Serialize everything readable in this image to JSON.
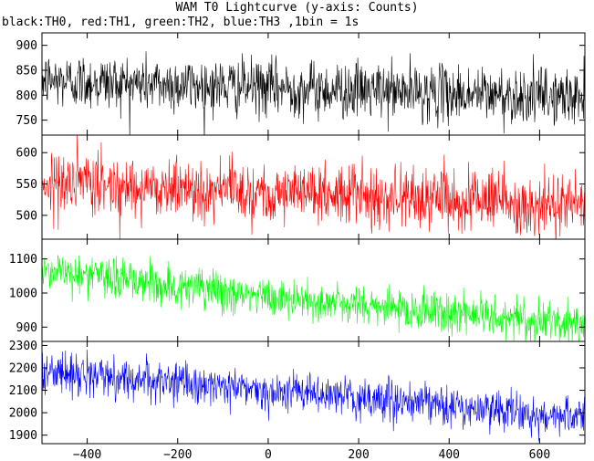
{
  "chart_data": {
    "type": "line",
    "title": "WAM T0 Lightcurve (y-axis: Counts)",
    "subtitle": "black:TH0, red:TH1, green:TH2, blue:TH3 ,1bin = 1s",
    "xlabel": "",
    "ylabel": "",
    "xlim": [
      -500,
      700
    ],
    "x_ticks": [
      -400,
      -200,
      0,
      200,
      400,
      600
    ],
    "x_tick_labels": [
      "−400",
      "−200",
      "0",
      "200",
      "400",
      "600"
    ],
    "bin_seconds": 1,
    "grid": false,
    "series": [
      {
        "label": "TH0",
        "color": "#000000",
        "ylim": [
          720,
          925
        ],
        "yticks": [
          750,
          800,
          850,
          900
        ],
        "trend": [
          {
            "x": -500,
            "y": 830
          },
          {
            "x": 0,
            "y": 815
          },
          {
            "x": 700,
            "y": 795
          }
        ],
        "noise_sd": 28
      },
      {
        "label": "TH1",
        "color": "#ff0000",
        "ylim": [
          462,
          628
        ],
        "yticks": [
          500,
          550,
          600
        ],
        "trend": [
          {
            "x": -500,
            "y": 552
          },
          {
            "x": 0,
            "y": 538
          },
          {
            "x": 700,
            "y": 518
          }
        ],
        "noise_sd": 24
      },
      {
        "label": "TH2",
        "color": "#00ff00",
        "ylim": [
          858,
          1158
        ],
        "yticks": [
          900,
          1000,
          1100
        ],
        "trend": [
          {
            "x": -500,
            "y": 1070
          },
          {
            "x": 0,
            "y": 985
          },
          {
            "x": 700,
            "y": 910
          }
        ],
        "noise_sd": 30
      },
      {
        "label": "TH3",
        "color": "#0000ff",
        "ylim": [
          1862,
          2318
        ],
        "yticks": [
          1900,
          2000,
          2100,
          2200,
          2300
        ],
        "trend": [
          {
            "x": -500,
            "y": 2185
          },
          {
            "x": 0,
            "y": 2100
          },
          {
            "x": 700,
            "y": 1975
          }
        ],
        "noise_sd": 44
      }
    ]
  }
}
